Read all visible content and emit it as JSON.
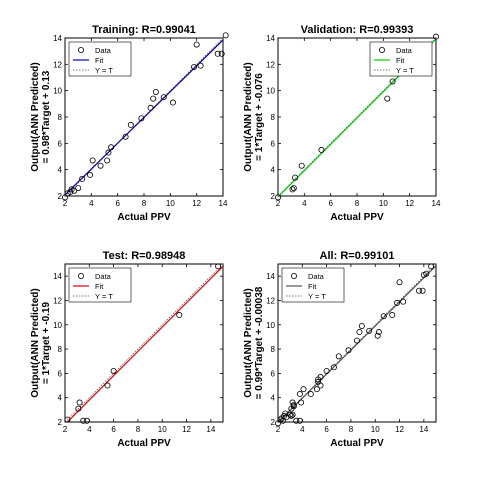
{
  "chart_data": [
    {
      "type": "scatter",
      "title": "Training: R=0.99041",
      "xlabel": "Actual PPV",
      "ylabel_line1": "Output(ANN Predicted)",
      "ylabel_line2": "= 0.98*Target + 0.13",
      "xlim": [
        2,
        14
      ],
      "ylim": [
        2,
        14
      ],
      "xticks": [
        "2",
        "4",
        "6",
        "8",
        "10",
        "12",
        "14"
      ],
      "yticks": [
        "2",
        "4",
        "6",
        "8",
        "10",
        "12",
        "14"
      ],
      "fit_color": "#0000aa",
      "fit": {
        "slope": 0.98,
        "intercept": 0.13
      },
      "legend": [
        "Data",
        "Fit",
        "Y = T"
      ],
      "legend_position": "top-left",
      "points": [
        [
          2.0,
          1.9
        ],
        [
          2.2,
          2.2
        ],
        [
          2.4,
          2.3
        ],
        [
          2.5,
          2.5
        ],
        [
          2.7,
          2.4
        ],
        [
          3.0,
          2.6
        ],
        [
          3.3,
          3.3
        ],
        [
          3.9,
          3.6
        ],
        [
          4.1,
          4.7
        ],
        [
          4.7,
          4.3
        ],
        [
          5.2,
          4.7
        ],
        [
          5.3,
          5.3
        ],
        [
          5.5,
          5.7
        ],
        [
          6.6,
          6.5
        ],
        [
          7.0,
          7.4
        ],
        [
          7.8,
          7.9
        ],
        [
          8.5,
          8.7
        ],
        [
          8.7,
          9.4
        ],
        [
          8.9,
          9.9
        ],
        [
          9.5,
          9.5
        ],
        [
          10.2,
          9.1
        ],
        [
          11.8,
          11.8
        ],
        [
          12.0,
          13.5
        ],
        [
          12.3,
          11.9
        ],
        [
          13.6,
          12.8
        ],
        [
          13.9,
          12.8
        ],
        [
          14.2,
          14.2
        ]
      ]
    },
    {
      "type": "scatter",
      "title": "Validation: R=0.99393",
      "xlabel": "Actual PPV",
      "ylabel_line1": "Output(ANN Predicted)",
      "ylabel_line2": "= 1*Target + -0.076",
      "xlim": [
        2,
        14
      ],
      "ylim": [
        2,
        14
      ],
      "xticks": [
        "2",
        "4",
        "6",
        "8",
        "10",
        "12",
        "14"
      ],
      "yticks": [
        "2",
        "4",
        "6",
        "8",
        "10",
        "12",
        "14"
      ],
      "fit_color": "#00cc00",
      "fit": {
        "slope": 1.0,
        "intercept": -0.076
      },
      "legend": [
        "Data",
        "Fit",
        "Y = T"
      ],
      "legend_position": "top-right",
      "points": [
        [
          2.0,
          1.9
        ],
        [
          3.1,
          2.5
        ],
        [
          3.2,
          2.6
        ],
        [
          3.3,
          3.4
        ],
        [
          3.8,
          4.3
        ],
        [
          5.3,
          5.5
        ],
        [
          10.3,
          9.4
        ],
        [
          10.7,
          10.7
        ],
        [
          14.0,
          14.1
        ]
      ]
    },
    {
      "type": "scatter",
      "title": "Test: R=0.98948",
      "xlabel": "Actual PPV",
      "ylabel_line1": "Output(ANN Predicted)",
      "ylabel_line2": "= 1*Target + -0.19",
      "xlim": [
        2,
        15
      ],
      "ylim": [
        2,
        15
      ],
      "xticks": [
        "2",
        "4",
        "6",
        "8",
        "10",
        "12",
        "14"
      ],
      "yticks": [
        "2",
        "4",
        "6",
        "8",
        "10",
        "12",
        "14"
      ],
      "fit_color": "#dd0000",
      "fit": {
        "slope": 1.0,
        "intercept": -0.19
      },
      "legend": [
        "Data",
        "Fit",
        "Y = T"
      ],
      "legend_position": "top-left",
      "points": [
        [
          2.2,
          2.2
        ],
        [
          3.1,
          3.1
        ],
        [
          3.2,
          3.6
        ],
        [
          3.5,
          2.1
        ],
        [
          3.8,
          2.1
        ],
        [
          5.5,
          5.0
        ],
        [
          6.0,
          6.2
        ],
        [
          11.4,
          10.8
        ],
        [
          14.6,
          14.8
        ]
      ]
    },
    {
      "type": "scatter",
      "title": "All: R=0.99101",
      "xlabel": "Actual PPV",
      "ylabel_line1": "Output(ANN Predicted)",
      "ylabel_line2": "= 0.99*Target + -0.00038",
      "xlim": [
        2,
        15
      ],
      "ylim": [
        2,
        15
      ],
      "xticks": [
        "2",
        "4",
        "6",
        "8",
        "10",
        "12",
        "14"
      ],
      "yticks": [
        "2",
        "4",
        "6",
        "8",
        "10",
        "12",
        "14"
      ],
      "fit_color": "#555555",
      "fit": {
        "slope": 0.99,
        "intercept": -0.00038
      },
      "legend": [
        "Data",
        "Fit",
        "Y = T"
      ],
      "legend_position": "top-left",
      "points": [
        [
          2.0,
          1.9
        ],
        [
          2.2,
          2.2
        ],
        [
          2.3,
          2.3
        ],
        [
          2.4,
          2.1
        ],
        [
          2.5,
          2.5
        ],
        [
          2.6,
          2.7
        ],
        [
          2.7,
          2.4
        ],
        [
          3.0,
          2.6
        ],
        [
          3.1,
          3.1
        ],
        [
          3.1,
          2.5
        ],
        [
          3.2,
          3.6
        ],
        [
          3.2,
          2.6
        ],
        [
          3.3,
          3.3
        ],
        [
          3.3,
          3.4
        ],
        [
          3.5,
          2.1
        ],
        [
          3.8,
          2.1
        ],
        [
          3.8,
          4.3
        ],
        [
          3.9,
          3.6
        ],
        [
          4.1,
          4.7
        ],
        [
          4.7,
          4.3
        ],
        [
          5.2,
          4.7
        ],
        [
          5.3,
          5.3
        ],
        [
          5.3,
          5.5
        ],
        [
          5.5,
          5.7
        ],
        [
          5.5,
          5.0
        ],
        [
          6.0,
          6.2
        ],
        [
          6.6,
          6.5
        ],
        [
          7.0,
          7.4
        ],
        [
          7.8,
          7.9
        ],
        [
          8.5,
          8.7
        ],
        [
          8.7,
          9.4
        ],
        [
          8.9,
          9.9
        ],
        [
          9.5,
          9.5
        ],
        [
          10.2,
          9.1
        ],
        [
          10.3,
          9.4
        ],
        [
          10.7,
          10.7
        ],
        [
          11.4,
          10.8
        ],
        [
          11.8,
          11.8
        ],
        [
          12.0,
          13.5
        ],
        [
          12.3,
          11.9
        ],
        [
          13.6,
          12.8
        ],
        [
          13.9,
          12.8
        ],
        [
          14.0,
          14.1
        ],
        [
          14.2,
          14.2
        ],
        [
          14.6,
          14.8
        ]
      ]
    }
  ]
}
